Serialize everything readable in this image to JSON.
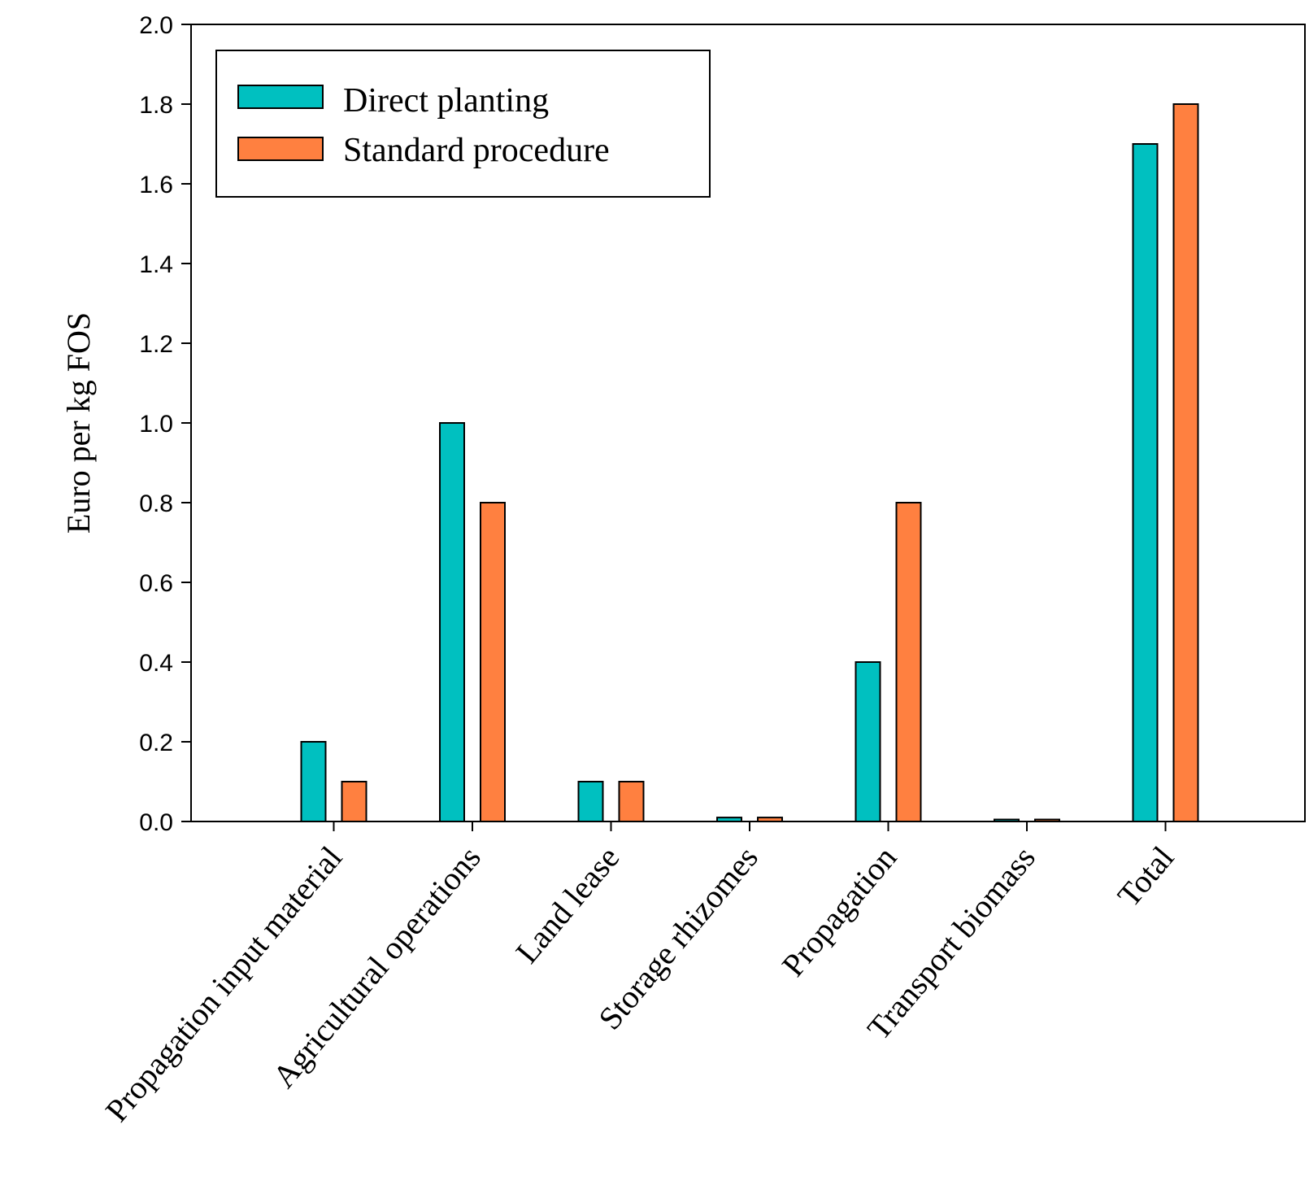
{
  "chart_data": {
    "type": "bar",
    "title": "",
    "xlabel": "",
    "ylabel": "Euro per kg FOS",
    "ylim": [
      0,
      2.0
    ],
    "yticks": [
      "0.0",
      "0.2",
      "0.4",
      "0.6",
      "0.8",
      "1.0",
      "1.2",
      "1.4",
      "1.6",
      "1.8",
      "2.0"
    ],
    "categories": [
      "Propagation input material",
      "Agricultural operations",
      "Land lease",
      "Storage rhizomes",
      "Propagation",
      "Transport biomass",
      "Total"
    ],
    "series": [
      {
        "name": "Direct planting",
        "color": "#00C0C0",
        "values": [
          0.2,
          1.0,
          0.1,
          0.01,
          0.4,
          0.005,
          1.7
        ]
      },
      {
        "name": "Standard procedure",
        "color": "#FF8040",
        "values": [
          0.1,
          0.8,
          0.1,
          0.01,
          0.8,
          0.005,
          1.8
        ]
      }
    ],
    "grid": false,
    "legend_position": "top-left"
  }
}
